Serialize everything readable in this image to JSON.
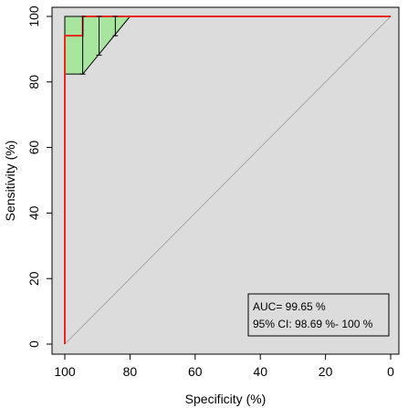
{
  "chart_data": {
    "type": "line",
    "title": "",
    "xlabel": "Specificity (%)",
    "ylabel": "Sensitivity (%)",
    "xlim": [
      100,
      0
    ],
    "ylim": [
      0,
      100
    ],
    "x_reversed": true,
    "xticks": [
      100,
      80,
      60,
      40,
      20,
      0
    ],
    "yticks": [
      0,
      20,
      40,
      60,
      80,
      100
    ],
    "grid": false,
    "background_color": "#dcdcdc",
    "series": [
      {
        "type": "roc-curve",
        "color": "#e8261c",
        "points": [
          [
            100,
            0
          ],
          [
            100,
            94.1
          ],
          [
            94.5,
            94.1
          ],
          [
            94.5,
            100
          ],
          [
            0,
            100
          ]
        ]
      },
      {
        "type": "ci-band",
        "color": "#a8e6a0",
        "upper": [
          [
            100,
            100
          ],
          [
            80,
            100
          ]
        ],
        "lower": [
          [
            100,
            82.4
          ],
          [
            94.5,
            82.4
          ],
          [
            80,
            100
          ]
        ]
      },
      {
        "type": "ci-bars",
        "color": "#000000",
        "bars": [
          {
            "x": 94.5,
            "low": 82.4,
            "high": 100
          },
          {
            "x": 89.5,
            "low": 88.2,
            "high": 100
          },
          {
            "x": 84.5,
            "low": 94.1,
            "high": 100
          }
        ]
      },
      {
        "type": "reference-line",
        "color": "#9a9a9a",
        "points": [
          [
            100,
            0
          ],
          [
            0,
            100
          ]
        ]
      }
    ],
    "annotation": {
      "auc": "AUC= 99.65 %",
      "ci": "95% CI: 98.69 %- 100 %"
    }
  }
}
